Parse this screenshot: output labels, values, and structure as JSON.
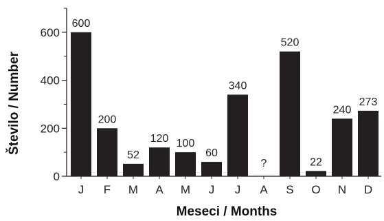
{
  "chart_data": {
    "type": "bar",
    "categories": [
      "J",
      "F",
      "M",
      "A",
      "M",
      "J",
      "J",
      "A",
      "S",
      "O",
      "N",
      "D"
    ],
    "values": [
      600,
      200,
      52,
      120,
      100,
      60,
      340,
      null,
      520,
      22,
      240,
      273
    ],
    "data_labels": [
      "600",
      "200",
      "52",
      "120",
      "100",
      "60",
      "340",
      "?",
      "520",
      "22",
      "240",
      "273"
    ],
    "xlabel": "Meseci / Months",
    "ylabel": "Število / Number",
    "ylim": [
      0,
      700
    ],
    "yticks": [
      0,
      200,
      400,
      600
    ],
    "grid": false,
    "bar_color": "#231f20"
  }
}
